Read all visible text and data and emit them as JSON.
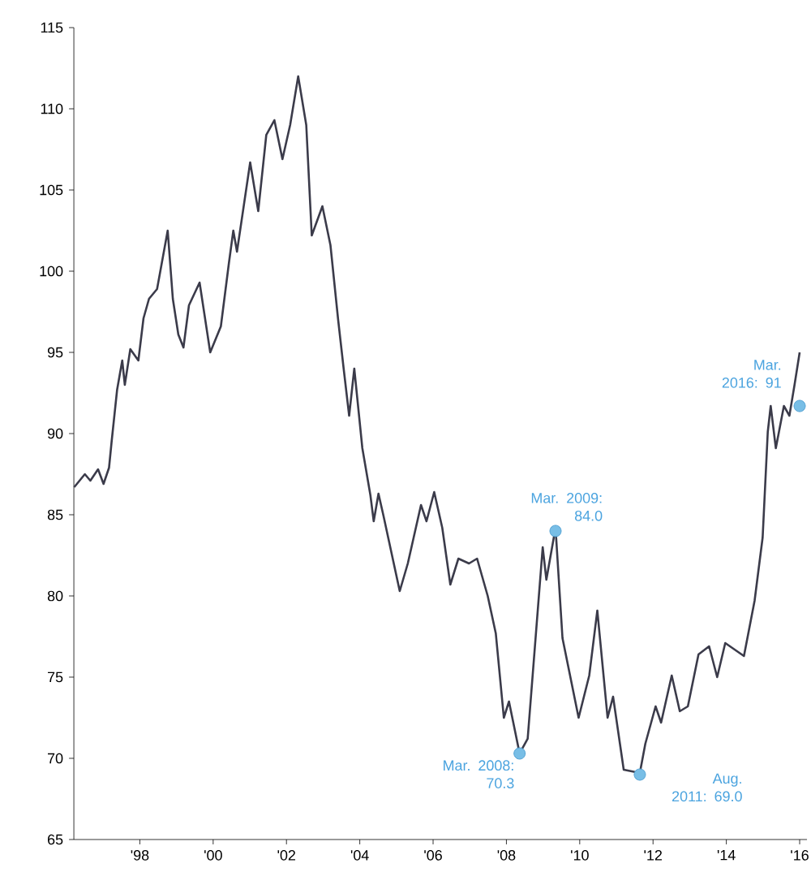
{
  "chart_data": {
    "type": "line",
    "x": [
      1996.21,
      1996.5,
      1996.65,
      1996.86,
      1997.01,
      1997.16,
      1997.23,
      1997.38,
      1997.52,
      1997.59,
      1997.74,
      1997.96,
      1998.1,
      1998.25,
      1998.47,
      1998.76,
      1998.9,
      1999.05,
      1999.19,
      1999.34,
      1999.63,
      1999.92,
      2000.21,
      2000.43,
      2000.55,
      2000.65,
      2001.01,
      2001.23,
      2001.45,
      2001.67,
      2001.89,
      2002.1,
      2002.32,
      2002.54,
      2002.69,
      2002.98,
      2003.2,
      2003.41,
      2003.56,
      2003.71,
      2003.85,
      2004.07,
      2004.29,
      2004.38,
      2004.51,
      2004.65,
      2005.09,
      2005.31,
      2005.67,
      2005.82,
      2006.03,
      2006.25,
      2006.47,
      2006.69,
      2006.98,
      2007.2,
      2007.49,
      2007.71,
      2007.93,
      2008.07,
      2008.36,
      2008.58,
      2008.99,
      2009.09,
      2009.34,
      2009.53,
      2009.97,
      2010.26,
      2010.48,
      2010.76,
      2010.91,
      2011.2,
      2011.64,
      2011.79,
      2012.07,
      2012.22,
      2012.51,
      2012.73,
      2012.95,
      2013.24,
      2013.53,
      2013.75,
      2013.97,
      2014.48,
      2014.77,
      2014.99,
      2015.13,
      2015.21,
      2015.35,
      2015.57,
      2015.72,
      2015.86,
      2016.0
    ],
    "series": [
      {
        "color": "#3b3b4a",
        "values": [
          86.7,
          87.5,
          87.1,
          87.8,
          86.9,
          87.9,
          89.5,
          92.7,
          94.5,
          93.0,
          95.2,
          94.5,
          97.1,
          98.3,
          98.9,
          102.5,
          98.3,
          96.1,
          95.3,
          97.9,
          99.3,
          95.0,
          96.6,
          100.5,
          102.5,
          101.2,
          106.7,
          103.7,
          108.4,
          109.3,
          106.9,
          109.0,
          112.0,
          109.0,
          102.2,
          104.0,
          101.6,
          97.0,
          94.0,
          91.1,
          94.0,
          89.1,
          86.2,
          84.6,
          86.3,
          84.9,
          80.3,
          82.0,
          85.6,
          84.6,
          86.4,
          84.2,
          80.7,
          82.3,
          82.0,
          82.3,
          80.0,
          77.7,
          72.5,
          73.5,
          70.3,
          71.2,
          83.0,
          81.0,
          84.2,
          77.4,
          72.5,
          75.1,
          79.1,
          72.5,
          73.8,
          69.3,
          69.1,
          70.9,
          73.2,
          72.2,
          75.1,
          72.9,
          73.2,
          76.4,
          76.9,
          75.0,
          77.1,
          76.3,
          79.7,
          83.6,
          90.1,
          91.7,
          89.1,
          91.7,
          91.1,
          93.0,
          95.0
        ]
      }
    ],
    "xlim": [
      1996.2,
      2016.2
    ],
    "ylim": [
      65,
      115
    ],
    "xticks": [
      {
        "value": 1998,
        "label": "'98"
      },
      {
        "value": 2000,
        "label": "'00"
      },
      {
        "value": 2002,
        "label": "'02"
      },
      {
        "value": 2004,
        "label": "'04"
      },
      {
        "value": 2006,
        "label": "'06"
      },
      {
        "value": 2008,
        "label": "'08"
      },
      {
        "value": 2010,
        "label": "'10"
      },
      {
        "value": 2012,
        "label": "'12"
      },
      {
        "value": 2014,
        "label": "'14"
      },
      {
        "value": 2016,
        "label": "'16"
      }
    ],
    "yticks": [
      65,
      70,
      75,
      80,
      85,
      90,
      95,
      100,
      105,
      110,
      115
    ],
    "annotations": [
      {
        "text": "Mar. 2008: 70.3",
        "x": 2008.36,
        "y": 70.3
      },
      {
        "text": "Mar. 2009: 84.0",
        "x": 2009.34,
        "y": 84.0
      },
      {
        "text": "Aug. 2011: 69.0",
        "x": 2011.64,
        "y": 69.0
      },
      {
        "text": "Mar. 2016: 91",
        "x": 2016.0,
        "y": 91.7
      }
    ],
    "grid": false,
    "marker": "none",
    "line_style": "solid"
  }
}
